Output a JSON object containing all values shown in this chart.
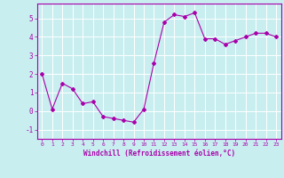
{
  "x": [
    0,
    1,
    2,
    3,
    4,
    5,
    6,
    7,
    8,
    9,
    10,
    11,
    12,
    13,
    14,
    15,
    16,
    17,
    18,
    19,
    20,
    21,
    22,
    23
  ],
  "y": [
    2.0,
    0.1,
    1.5,
    1.2,
    0.4,
    0.5,
    -0.3,
    -0.4,
    -0.5,
    -0.6,
    0.1,
    2.6,
    4.8,
    5.2,
    5.1,
    5.3,
    3.9,
    3.9,
    3.6,
    3.8,
    4.0,
    4.2,
    4.2,
    4.0
  ],
  "line_color": "#aa00aa",
  "marker": "D",
  "marker_size": 2,
  "bg_color": "#c8eef0",
  "grid_color": "#ffffff",
  "xlabel": "Windchill (Refroidissement éolien,°C)",
  "xlabel_color": "#aa00aa",
  "tick_color": "#aa00aa",
  "ylim": [
    -1.5,
    5.8
  ],
  "xlim": [
    -0.5,
    23.5
  ],
  "yticks": [
    -1,
    0,
    1,
    2,
    3,
    4,
    5
  ],
  "xticks": [
    0,
    1,
    2,
    3,
    4,
    5,
    6,
    7,
    8,
    9,
    10,
    11,
    12,
    13,
    14,
    15,
    16,
    17,
    18,
    19,
    20,
    21,
    22,
    23
  ]
}
